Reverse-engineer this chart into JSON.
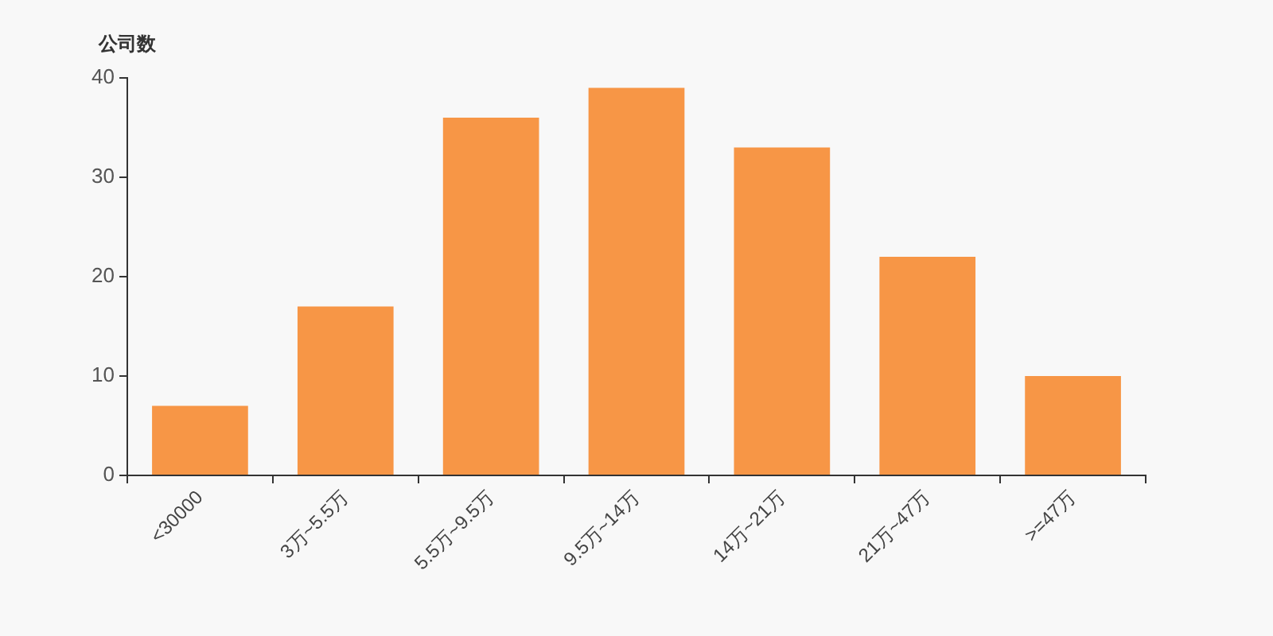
{
  "chart_data": {
    "type": "bar",
    "ylabel": "公司数",
    "categories": [
      "<30000",
      "3万~5.5万",
      "5.5万~9.5万",
      "9.5万~14万",
      "14万~21万",
      "21万~47万",
      ">=47万"
    ],
    "values": [
      7,
      17,
      36,
      39,
      33,
      22,
      10
    ],
    "color": "#f79646",
    "ylim": [
      0,
      40
    ],
    "yticks": [
      0,
      10,
      20,
      30,
      40
    ],
    "legend": false
  }
}
